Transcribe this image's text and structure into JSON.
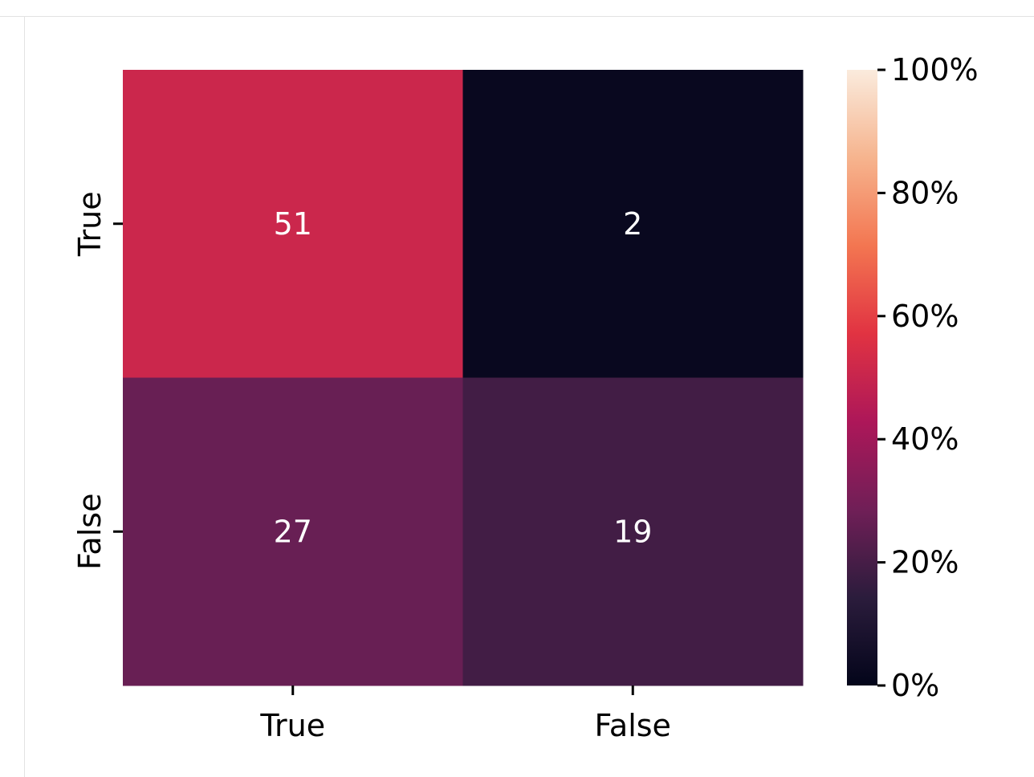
{
  "chart_data": {
    "type": "heatmap",
    "title": "",
    "xlabel": "",
    "ylabel": "",
    "x_categories": [
      "True",
      "False"
    ],
    "y_categories": [
      "True",
      "False"
    ],
    "values": [
      [
        51,
        2
      ],
      [
        27,
        19
      ]
    ],
    "annotations": [
      [
        "51",
        "2"
      ],
      [
        "27",
        "19"
      ]
    ],
    "colorbar": {
      "range": [
        0,
        100
      ],
      "ticks": [
        0,
        20,
        40,
        60,
        80,
        100
      ],
      "tick_labels": [
        "0%",
        "20%",
        "40%",
        "60%",
        "80%",
        "100%"
      ],
      "colormap": "rocket",
      "placement": "right"
    },
    "grid": false,
    "legend": "none"
  },
  "colors": {
    "background": "#ffffff",
    "annotation_text": "#ffffff",
    "axis_text": "#000000",
    "colormap_stops": [
      "#03051a",
      "#2b1c3c",
      "#701f57",
      "#ad1759",
      "#e13342",
      "#f37651",
      "#f6b48e",
      "#faebdd"
    ]
  }
}
